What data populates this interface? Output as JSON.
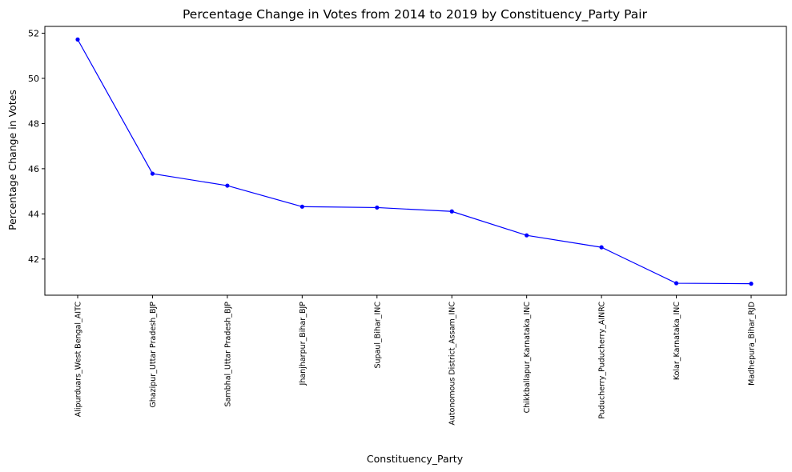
{
  "chart_data": {
    "type": "line",
    "title": "Percentage Change in Votes from 2014 to 2019 by Constituency_Party Pair",
    "xlabel": "Constituency_Party",
    "ylabel": "Percentage Change in Votes",
    "categories": [
      "Alipurduars_West Bengal_AITC",
      "Ghazipur_Uttar Pradesh_BJP",
      "Sambhal_Uttar Pradesh_BJP",
      "Jhanjharpur_Bihar_BJP",
      "Supaul_Bihar_INC",
      "Autonomous District_Assam_INC",
      "Chikkballapur_Karnataka_INC",
      "Puducherry_Puducherry_AINRC",
      "Kolar_Karnataka_INC",
      "Madhepura_Bihar_RJD"
    ],
    "series": [
      {
        "values": [
          51.72,
          45.78,
          45.25,
          44.32,
          44.28,
          44.11,
          43.05,
          42.52,
          40.93,
          40.91
        ],
        "color": "#0000ff"
      }
    ],
    "ylim": [
      40.4,
      52.3
    ],
    "yticks": [
      42,
      44,
      46,
      48,
      50,
      52
    ],
    "grid": false,
    "legend": "none",
    "marker": "circle"
  }
}
